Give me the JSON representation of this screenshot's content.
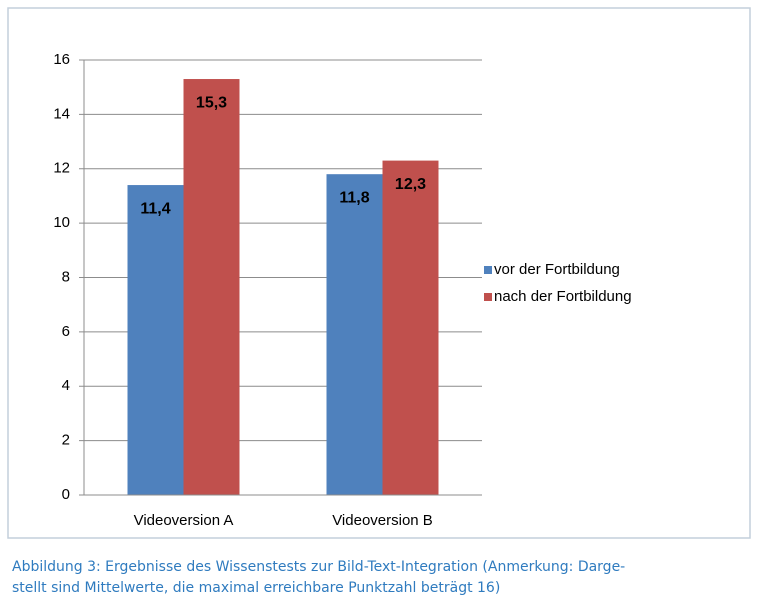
{
  "chart_data": {
    "type": "bar",
    "categories": [
      "Videoversion A",
      "Videoversion B"
    ],
    "series": [
      {
        "name": "vor der Fortbildung",
        "color": "#4f81bd",
        "values": [
          11.4,
          11.8
        ],
        "value_labels": [
          "11,4",
          "11,8"
        ]
      },
      {
        "name": "nach der Fortbildung",
        "color": "#c0504d",
        "values": [
          15.3,
          12.3
        ],
        "value_labels": [
          "15,3",
          "12,3"
        ]
      }
    ],
    "ylim": [
      0,
      16
    ],
    "yticks": [
      0,
      2,
      4,
      6,
      8,
      10,
      12,
      14,
      16
    ],
    "grid": true,
    "legend": "right"
  },
  "caption": [
    "Abbildung 3: Ergebnisse des Wissenstests zur Bild-Text-Integration (Anmerkung: Darge-",
    "stellt sind Mittelwerte, die maximal erreichbare Punktzahl beträgt 16)"
  ]
}
